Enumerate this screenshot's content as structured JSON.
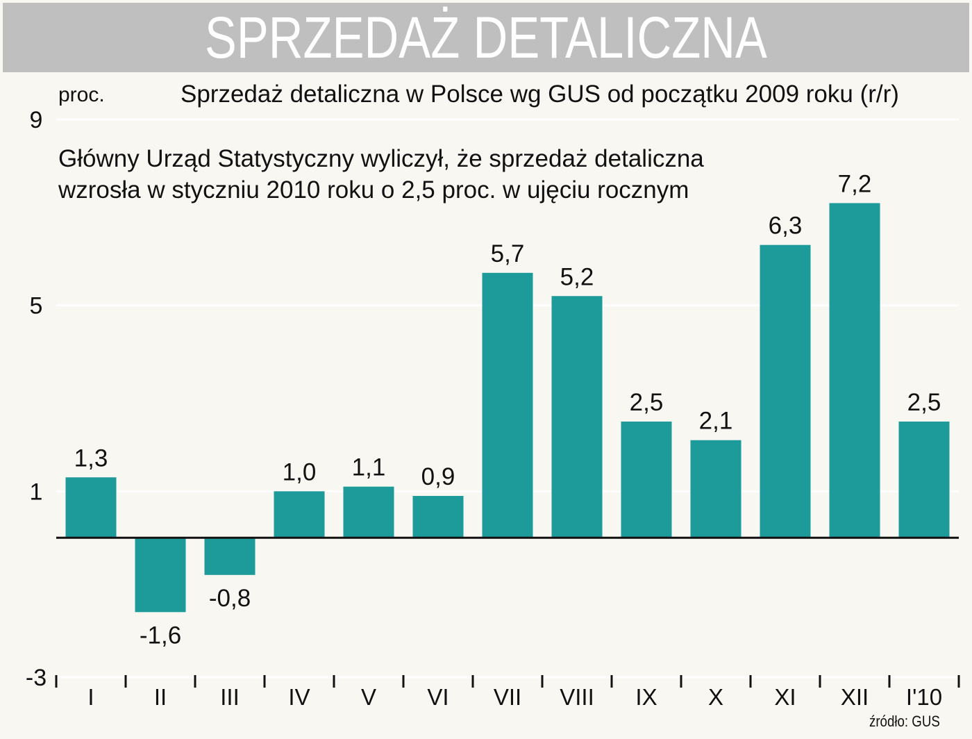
{
  "header": {
    "title": "SPRZEDAŻ DETALICZNA"
  },
  "unit_label": "proc.",
  "note": {
    "line1": "Główny Urząd Statystyczny wyliczył, że sprzedaż detaliczna",
    "line2": "wzrosła w styczniu 2010 roku o 2,5 proc. w ujęciu rocznym"
  },
  "source": "źródło: GUS",
  "colors": {
    "bar": "#1d9a9a",
    "banner": "#bfbfbf",
    "background": "#f8f7f2"
  },
  "chart_data": {
    "type": "bar",
    "title": "Sprzedaż detaliczna w Polsce wg GUS od początku 2009 roku (r/r)",
    "ylabel": "proc.",
    "categories": [
      "I",
      "II",
      "III",
      "IV",
      "V",
      "VI",
      "VII",
      "VIII",
      "IX",
      "X",
      "XI",
      "XII",
      "I'10"
    ],
    "values": [
      1.3,
      -1.6,
      -0.8,
      1.0,
      1.1,
      0.9,
      5.7,
      5.2,
      2.5,
      2.1,
      6.3,
      7.2,
      2.5
    ],
    "value_labels": [
      "1,3",
      "-1,6",
      "-0,8",
      "1,0",
      "1,1",
      "0,9",
      "5,7",
      "5,2",
      "2,5",
      "2,1",
      "6,3",
      "7,2",
      "2,5"
    ],
    "ylim": [
      -3,
      9
    ],
    "yticks": [
      9,
      5,
      1,
      -3
    ],
    "ytick_labels": [
      "9",
      "5",
      "1",
      "-3"
    ],
    "grid": true
  }
}
